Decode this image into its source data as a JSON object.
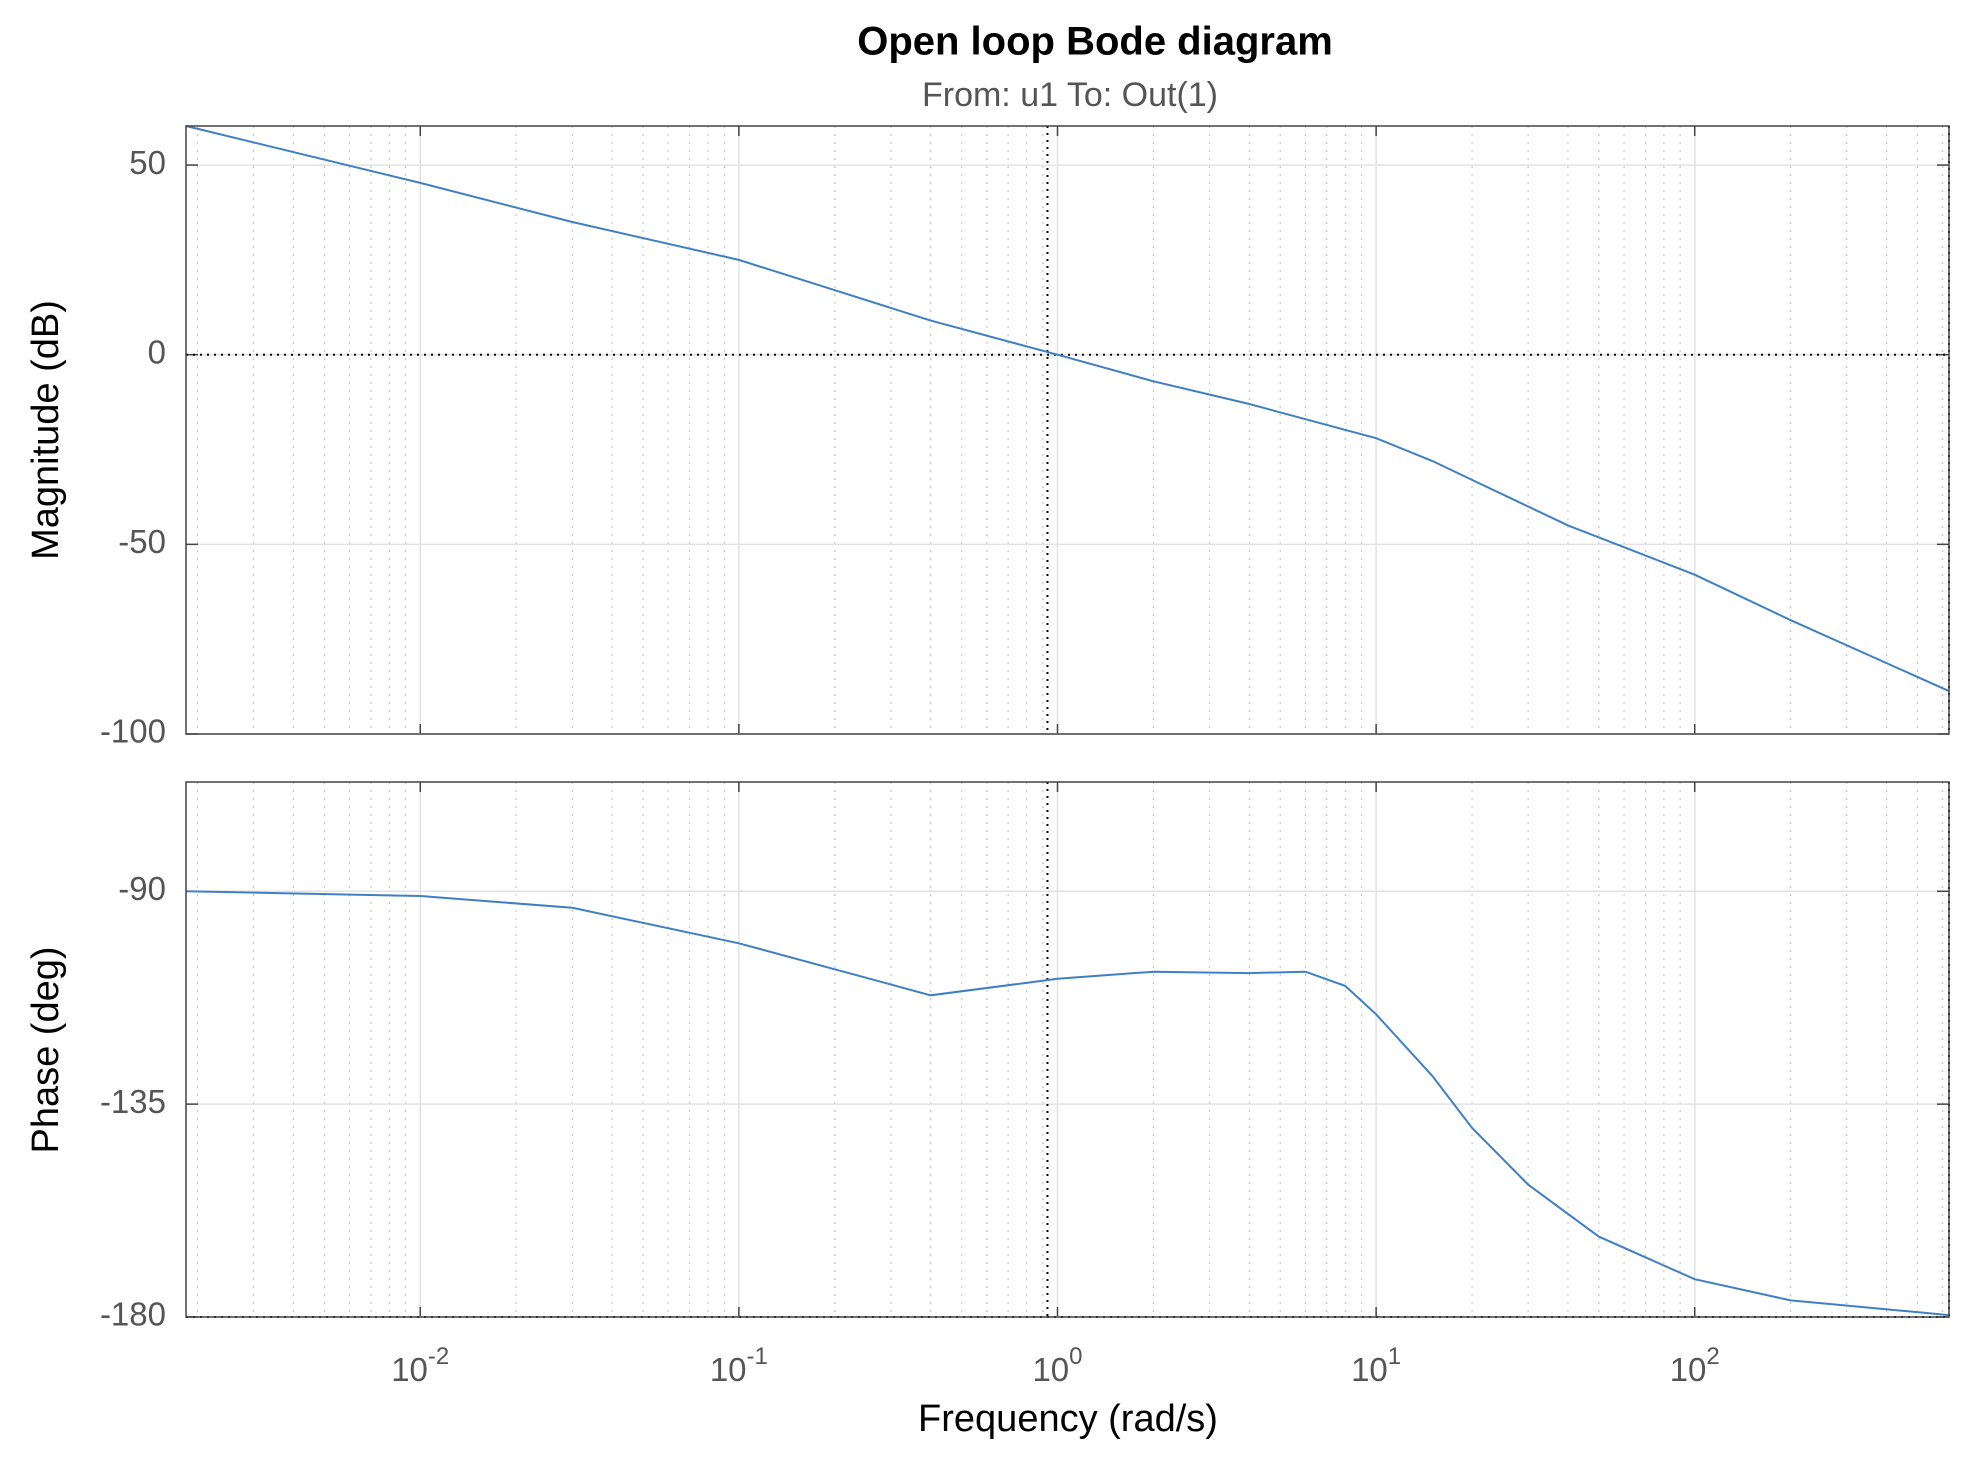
{
  "chart_data": [
    {
      "type": "line",
      "title": "Open loop Bode diagram",
      "subtitle": "From: u1  To: Out(1)",
      "ylabel": "Magnitude (dB)",
      "xscale": "log",
      "grid": true,
      "color": "#3f7fc4",
      "x": [
        0.00184,
        0.01,
        0.03,
        0.1,
        0.2,
        0.4,
        1,
        2,
        4,
        6,
        10,
        15,
        20,
        40,
        100,
        200,
        628
      ],
      "values": [
        60.3,
        45.3,
        35,
        25,
        17,
        9,
        0,
        -7,
        -13,
        -17,
        -22,
        -28,
        -33,
        -45,
        -58,
        -70,
        -88.7
      ],
      "ylim": [
        -100,
        60.3
      ],
      "yticks": [
        -100,
        -50,
        0,
        50
      ],
      "hlines": [
        0
      ],
      "vlines": [
        0.93,
        628
      ]
    },
    {
      "type": "line",
      "ylabel": "Phase (deg)",
      "xlabel": "Frequency  (rad/s)",
      "xscale": "log",
      "grid": true,
      "color": "#3f7fc4",
      "x": [
        0.00184,
        0.01,
        0.03,
        0.1,
        0.2,
        0.4,
        1,
        2,
        4,
        6,
        8,
        10,
        15,
        20,
        30,
        50,
        100,
        200,
        628
      ],
      "values": [
        -90,
        -91,
        -93.5,
        -101,
        -106.5,
        -112,
        -108.5,
        -107,
        -107.3,
        -107,
        -110,
        -116,
        -129,
        -140,
        -152,
        -163,
        -172,
        -176.5,
        -179.6
      ],
      "xlim": [
        0.00184,
        628
      ],
      "xticks": [
        {
          "value": 0.01,
          "label": "10",
          "exponent": "-2"
        },
        {
          "value": 0.1,
          "label": "10",
          "exponent": "-1"
        },
        {
          "value": 1,
          "label": "10",
          "exponent": "0"
        },
        {
          "value": 10,
          "label": "10",
          "exponent": "1"
        },
        {
          "value": 100,
          "label": "10",
          "exponent": "2"
        }
      ],
      "ylim": [
        -180,
        -66.9
      ],
      "yticks": [
        -180,
        -135,
        -90
      ],
      "hlines": [
        -180
      ],
      "vlines": [
        0.93,
        628
      ]
    }
  ]
}
